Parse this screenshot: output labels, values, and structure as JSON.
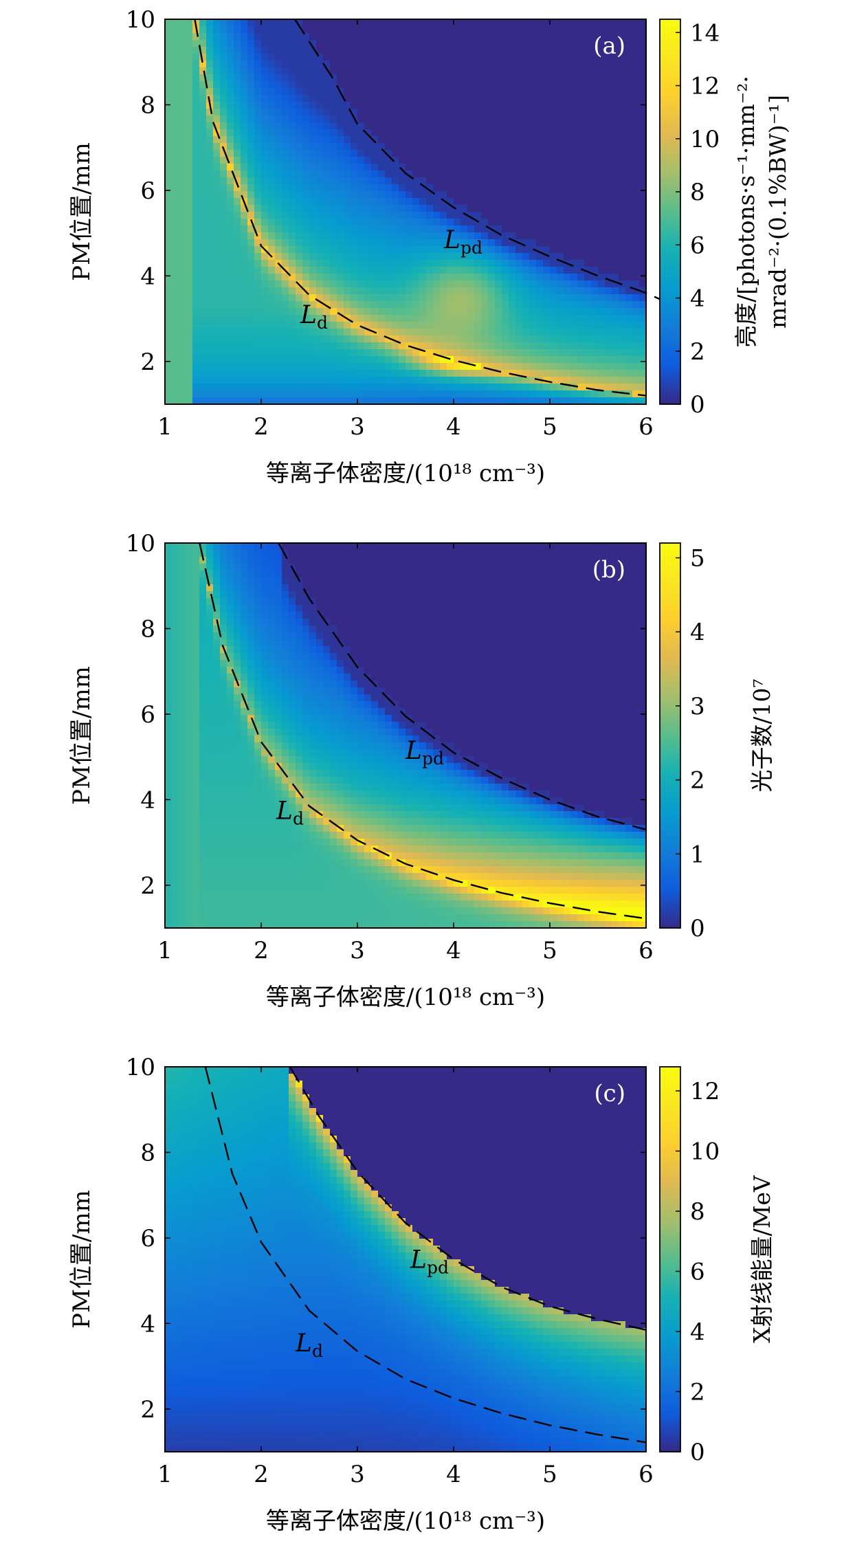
{
  "chart_data": [
    {
      "type": "heatmap",
      "panel": "(a)",
      "xlabel": "等离子体密度/(10¹⁸ cm⁻³)",
      "ylabel": "PM位置/mm",
      "x_ticks": [
        "1",
        "2",
        "3",
        "4",
        "5",
        "6"
      ],
      "y_ticks": [
        "2",
        "4",
        "6",
        "8",
        "10"
      ],
      "xlim": [
        1,
        6
      ],
      "ylim": [
        1,
        10
      ],
      "colorbar": {
        "label_lines": [
          "亮度/[photons·s⁻¹·mm⁻²·",
          "mrad⁻²·(0.1%BW)⁻¹]"
        ],
        "ticks": [
          "0",
          "2",
          "4",
          "6",
          "8",
          "10",
          "12",
          "14"
        ],
        "range": [
          0,
          14.5
        ],
        "colormap": "parula"
      },
      "curves": [
        {
          "label": "L",
          "subscript": "d",
          "dash": true,
          "points": [
            [
              1.31,
              10
            ],
            [
              1.5,
              7.6
            ],
            [
              2.0,
              4.7
            ],
            [
              2.5,
              3.55
            ],
            [
              3.0,
              2.85
            ],
            [
              3.5,
              2.38
            ],
            [
              4.0,
              2.03
            ],
            [
              4.5,
              1.75
            ],
            [
              5.0,
              1.52
            ],
            [
              5.5,
              1.33
            ],
            [
              6.0,
              1.2
            ]
          ]
        },
        {
          "label": "L",
          "subscript": "pd",
          "dash": true,
          "points": [
            [
              2.35,
              10
            ],
            [
              2.75,
              8.6
            ],
            [
              3.0,
              7.55
            ],
            [
              3.5,
              6.4
            ],
            [
              4.0,
              5.6
            ],
            [
              4.5,
              4.95
            ],
            [
              5.0,
              4.45
            ],
            [
              5.5,
              4.0
            ],
            [
              6.0,
              3.6
            ],
            [
              6.15,
              3.45
            ]
          ]
        }
      ],
      "curve_labels": [
        {
          "text": "L",
          "sub": "d",
          "x": 2.55,
          "y": 2.9
        },
        {
          "text": "L",
          "sub": "pd",
          "x": 4.1,
          "y": 4.65
        }
      ],
      "peak": {
        "x": 4.1,
        "y": 2.05,
        "value": 14.5
      }
    },
    {
      "type": "heatmap",
      "panel": "(b)",
      "xlabel": "等离子体密度/(10¹⁸ cm⁻³)",
      "ylabel": "PM位置/mm",
      "x_ticks": [
        "1",
        "2",
        "3",
        "4",
        "5",
        "6"
      ],
      "y_ticks": [
        "2",
        "4",
        "6",
        "8",
        "10"
      ],
      "xlim": [
        1,
        6
      ],
      "ylim": [
        1,
        10
      ],
      "colorbar": {
        "label_lines": [
          "光子数/10⁷"
        ],
        "ticks": [
          "0",
          "1",
          "2",
          "3",
          "4",
          "5"
        ],
        "range": [
          0,
          5.2
        ],
        "colormap": "parula"
      },
      "curves": [
        {
          "label": "L",
          "subscript": "d",
          "dash": true,
          "points": [
            [
              1.36,
              10
            ],
            [
              1.6,
              7.6
            ],
            [
              2.0,
              5.35
            ],
            [
              2.5,
              3.85
            ],
            [
              3.0,
              3.05
            ],
            [
              3.5,
              2.5
            ],
            [
              4.0,
              2.12
            ],
            [
              4.5,
              1.82
            ],
            [
              5.0,
              1.58
            ],
            [
              5.5,
              1.38
            ],
            [
              6.0,
              1.22
            ]
          ]
        },
        {
          "label": "L",
          "subscript": "pd",
          "dash": true,
          "points": [
            [
              2.18,
              10
            ],
            [
              2.5,
              8.7
            ],
            [
              3.0,
              7.1
            ],
            [
              3.5,
              5.95
            ],
            [
              4.0,
              5.1
            ],
            [
              4.5,
              4.5
            ],
            [
              5.0,
              4.0
            ],
            [
              5.5,
              3.6
            ],
            [
              6.0,
              3.3
            ]
          ]
        }
      ],
      "curve_labels": [
        {
          "text": "L",
          "sub": "d",
          "x": 2.3,
          "y": 3.55
        },
        {
          "text": "L",
          "sub": "pd",
          "x": 3.7,
          "y": 4.95
        }
      ],
      "peak": {
        "x": 6.0,
        "y": 1.2,
        "value": 5.2
      }
    },
    {
      "type": "heatmap",
      "panel": "(c)",
      "xlabel": "等离子体密度/(10¹⁸ cm⁻³)",
      "ylabel": "PM位置/mm",
      "x_ticks": [
        "1",
        "2",
        "3",
        "4",
        "5",
        "6"
      ],
      "y_ticks": [
        "2",
        "4",
        "6",
        "8",
        "10"
      ],
      "xlim": [
        1,
        6
      ],
      "ylim": [
        1,
        10
      ],
      "colorbar": {
        "label_lines": [
          "X射线能量/MeV"
        ],
        "ticks": [
          "0",
          "2",
          "4",
          "6",
          "8",
          "10",
          "12"
        ],
        "range": [
          0,
          12.8
        ],
        "colormap": "parula"
      },
      "curves": [
        {
          "label": "L",
          "subscript": "d",
          "dash": true,
          "points": [
            [
              1.42,
              10
            ],
            [
              1.7,
              7.5
            ],
            [
              2.0,
              5.9
            ],
            [
              2.5,
              4.3
            ],
            [
              3.0,
              3.35
            ],
            [
              3.5,
              2.7
            ],
            [
              4.0,
              2.25
            ],
            [
              4.5,
              1.9
            ],
            [
              5.0,
              1.62
            ],
            [
              5.5,
              1.4
            ],
            [
              6.0,
              1.22
            ]
          ]
        },
        {
          "label": "L",
          "subscript": "pd",
          "dash": true,
          "points": [
            [
              2.3,
              10
            ],
            [
              2.6,
              8.85
            ],
            [
              3.0,
              7.55
            ],
            [
              3.5,
              6.35
            ],
            [
              4.0,
              5.5
            ],
            [
              4.5,
              4.85
            ],
            [
              5.0,
              4.4
            ],
            [
              5.5,
              4.1
            ],
            [
              6.0,
              3.85
            ]
          ]
        }
      ],
      "curve_labels": [
        {
          "text": "L",
          "sub": "d",
          "x": 2.5,
          "y": 3.35
        },
        {
          "text": "L",
          "sub": "pd",
          "x": 3.75,
          "y": 5.3
        }
      ],
      "peak": {
        "x": 2.35,
        "y": 10,
        "value": 12.8
      }
    }
  ]
}
